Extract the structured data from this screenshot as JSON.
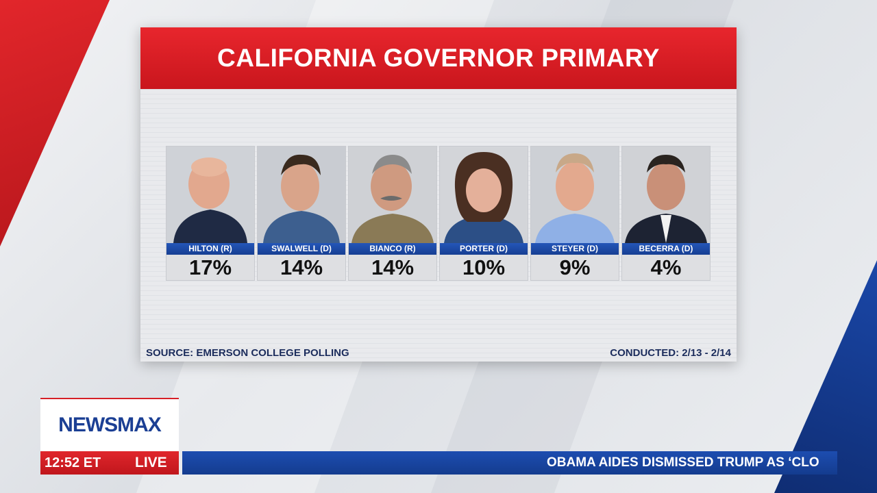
{
  "graphic": {
    "title": "CALIFORNIA GOVERNOR PRIMARY",
    "source": "SOURCE: EMERSON COLLEGE POLLING",
    "conducted": "CONDUCTED: 2/13 - 2/14",
    "candidates": [
      {
        "label": "HILTON (R)",
        "pct": "17%"
      },
      {
        "label": "SWALWELL (D)",
        "pct": "14%"
      },
      {
        "label": "BIANCO (R)",
        "pct": "14%"
      },
      {
        "label": "PORTER (D)",
        "pct": "10%"
      },
      {
        "label": "STEYER (D)",
        "pct": "9%"
      },
      {
        "label": "BECERRA (D)",
        "pct": "4%"
      }
    ]
  },
  "broadcast": {
    "network": "NEWSMAX",
    "clock": "12:52 ET",
    "live": "LIVE",
    "ticker": "OBAMA AIDES DISMISSED TRUMP AS ‘CLO"
  },
  "colors": {
    "red": "#d61f26",
    "blue": "#1b3f94",
    "name_bar": "#1e4fae"
  }
}
